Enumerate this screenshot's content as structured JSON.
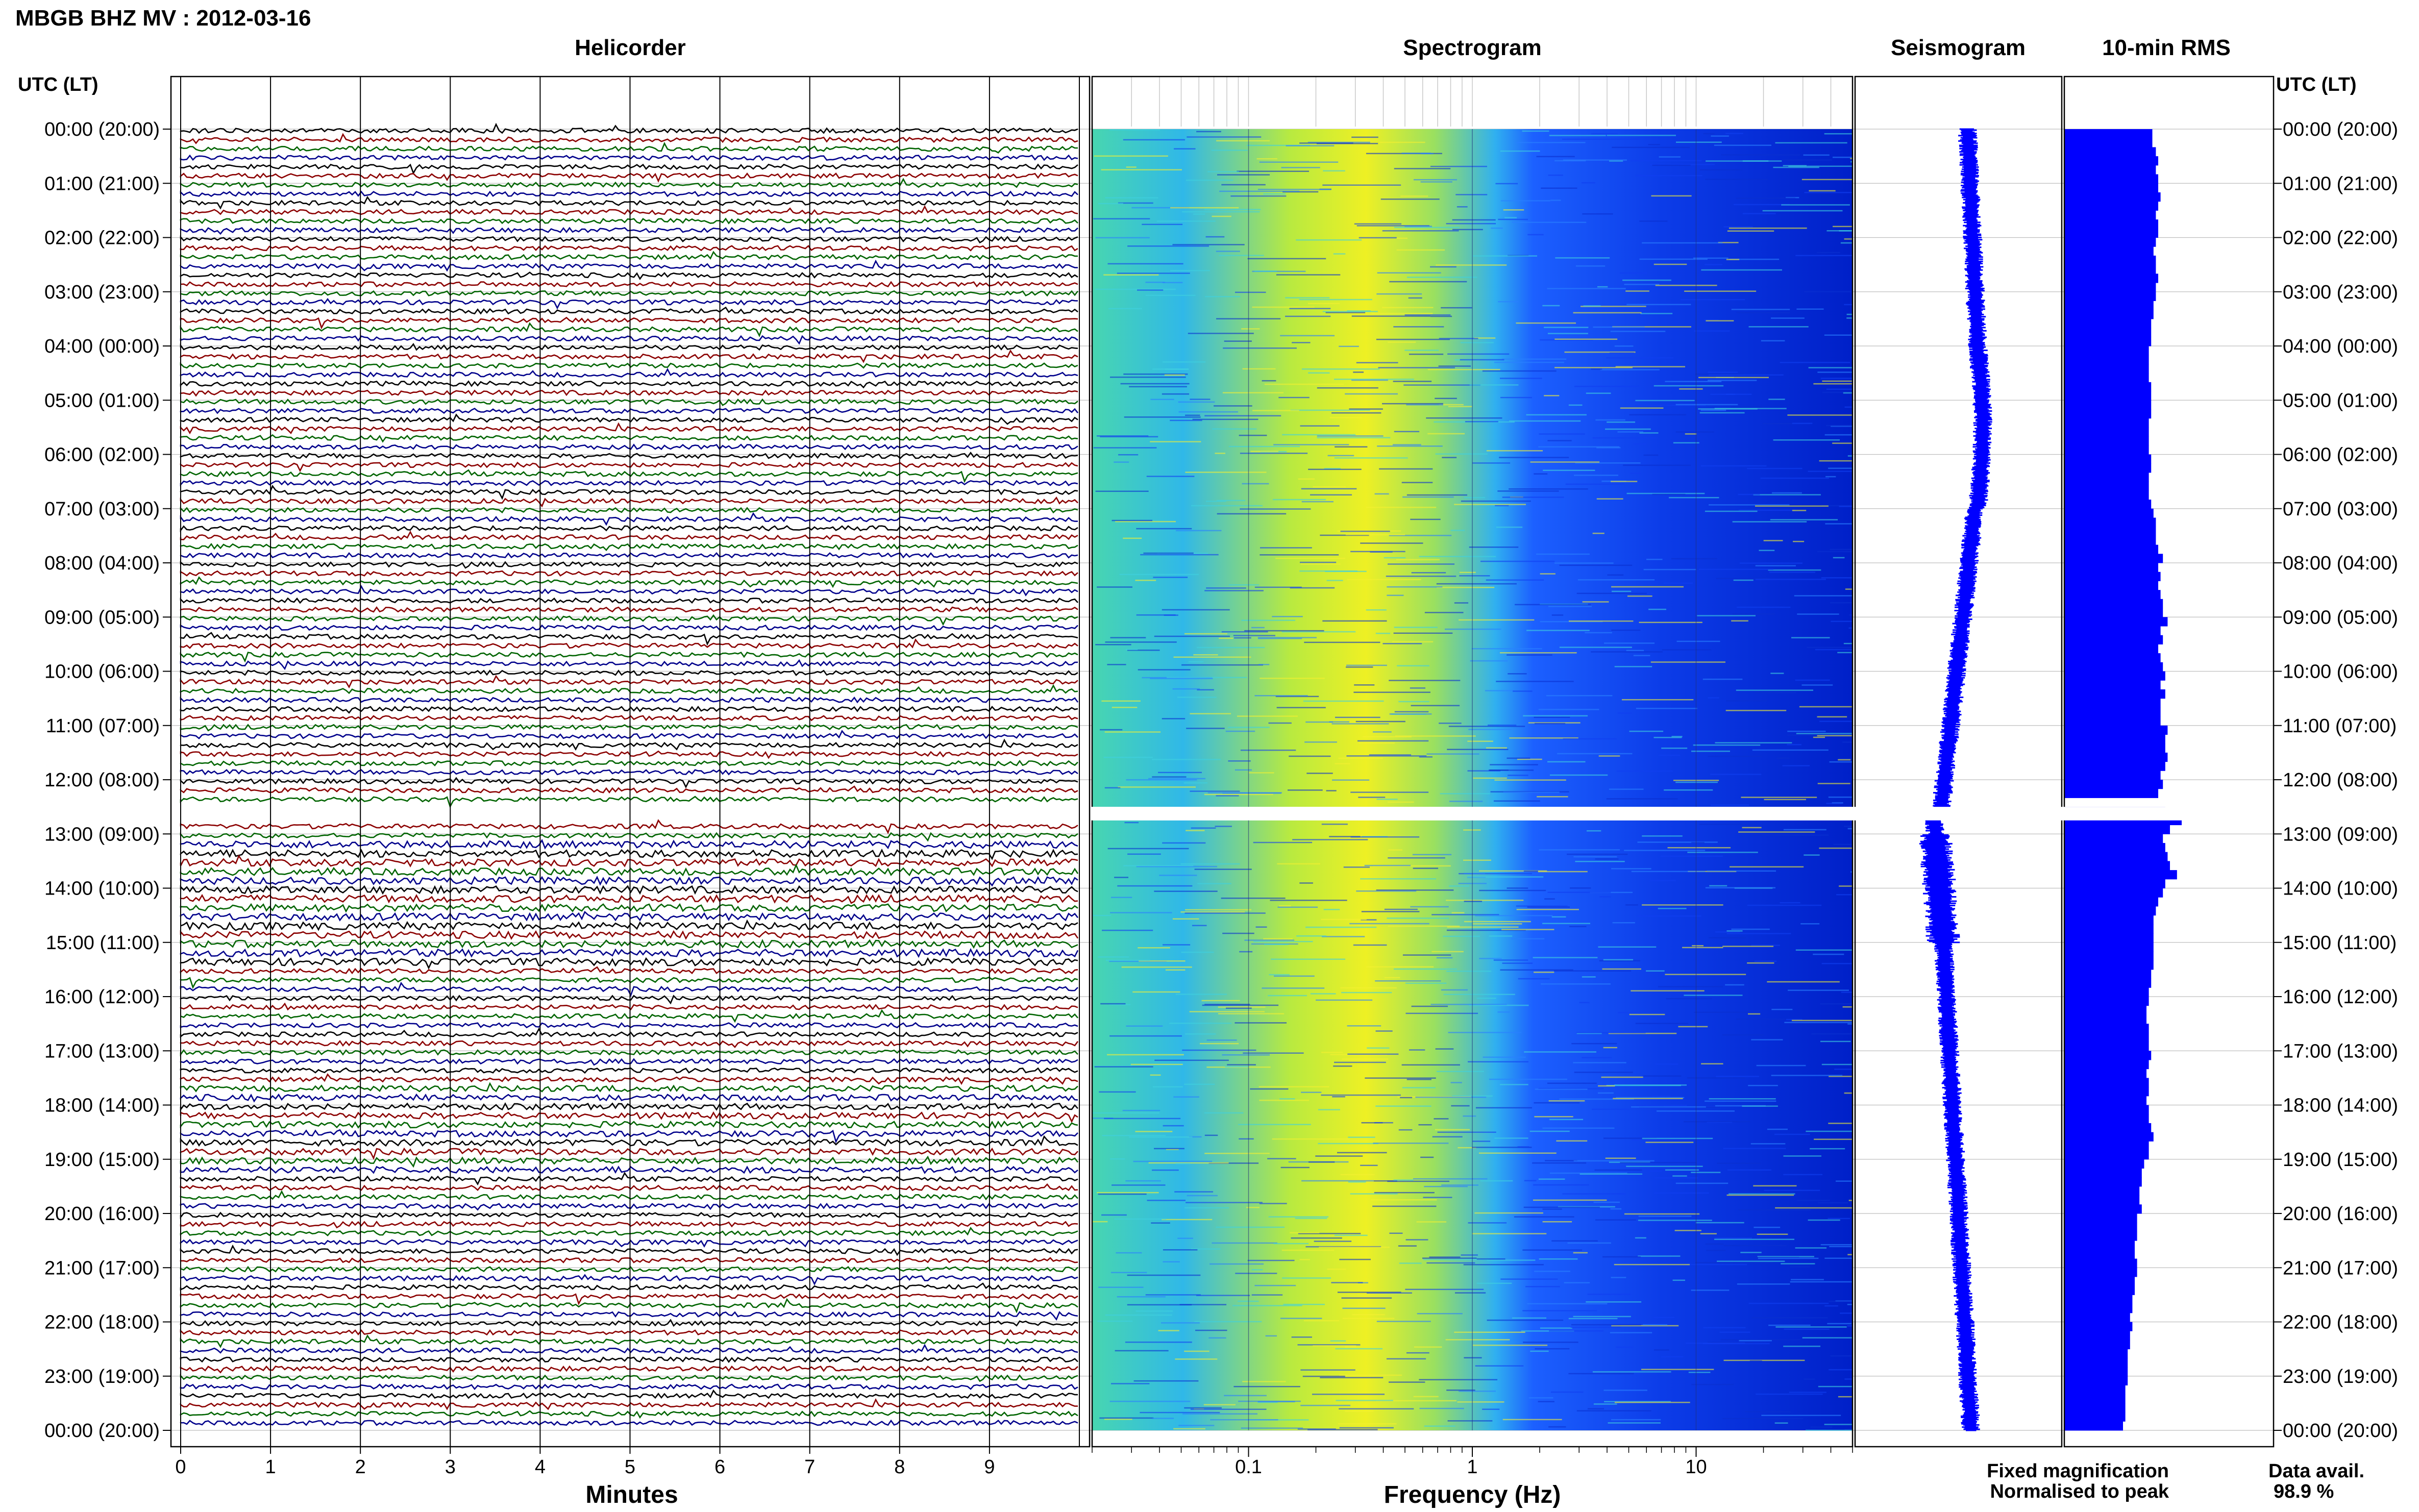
{
  "header": {
    "title": "MBGB BHZ MV : 2012-03-16",
    "utc_lt_label_left": "UTC (LT)",
    "utc_lt_label_right": "UTC (LT)"
  },
  "panels": {
    "helicorder": "Helicorder",
    "spectrogram": "Spectrogram",
    "seismogram": "Seismogram",
    "rms": "10-min RMS"
  },
  "axes": {
    "minutes_label": "Minutes",
    "frequency_label": "Frequency (Hz)"
  },
  "legend": {
    "fixed_magnification": "Fixed magnification",
    "normalised_to_peak": "Normalised to peak",
    "fixed_color": "#0000ff",
    "normalised_color": "#ff0000"
  },
  "data_availability": {
    "label": "Data avail.",
    "value": "98.9 %"
  },
  "colors": {
    "helicorder_traces": [
      "#000000",
      "#8b0000",
      "#006400",
      "#00008b"
    ],
    "spectrogram_low": "#0018ff",
    "spectrogram_mid": "#20c8e0",
    "spectrogram_high": "#f0f020",
    "seismogram": "#0000ff",
    "rms_bars": "#0000ff"
  },
  "chart_data": {
    "type": "heatmap",
    "time_ticks": [
      "00:00 (20:00)",
      "01:00 (21:00)",
      "02:00 (22:00)",
      "03:00 (23:00)",
      "04:00 (00:00)",
      "05:00 (01:00)",
      "06:00 (02:00)",
      "07:00 (03:00)",
      "08:00 (04:00)",
      "09:00 (05:00)",
      "10:00 (06:00)",
      "11:00 (07:00)",
      "12:00 (08:00)",
      "13:00 (09:00)",
      "14:00 (10:00)",
      "15:00 (11:00)",
      "16:00 (12:00)",
      "17:00 (13:00)",
      "18:00 (14:00)",
      "19:00 (15:00)",
      "20:00 (16:00)",
      "21:00 (17:00)",
      "22:00 (18:00)",
      "23:00 (19:00)",
      "00:00 (20:00)"
    ],
    "minutes_ticks": [
      "0",
      "1",
      "2",
      "3",
      "4",
      "5",
      "6",
      "7",
      "8",
      "9"
    ],
    "minutes_range": [
      0,
      10
    ],
    "frequency_ticks": [
      "0.1",
      "1",
      "10"
    ],
    "frequency_range_hz": [
      0.02,
      50
    ],
    "frequency_scale": "log",
    "data_gap_utc": [
      "12:30",
      "12:45"
    ],
    "rms_10min": [
      0.75,
      0.75,
      0.78,
      0.8,
      0.78,
      0.8,
      0.8,
      0.82,
      0.8,
      0.78,
      0.8,
      0.8,
      0.78,
      0.76,
      0.78,
      0.78,
      0.8,
      0.78,
      0.78,
      0.76,
      0.76,
      0.74,
      0.74,
      0.74,
      0.72,
      0.72,
      0.72,
      0.72,
      0.74,
      0.74,
      0.74,
      0.74,
      0.72,
      0.72,
      0.72,
      0.72,
      0.74,
      0.74,
      0.72,
      0.72,
      0.72,
      0.74,
      0.76,
      0.78,
      0.78,
      0.78,
      0.8,
      0.84,
      0.8,
      0.82,
      0.8,
      0.82,
      0.84,
      0.84,
      0.88,
      0.82,
      0.84,
      0.8,
      0.82,
      0.84,
      0.86,
      0.82,
      0.86,
      0.82,
      0.82,
      0.82,
      0.88,
      0.86,
      0.86,
      0.88,
      0.86,
      0.82,
      0.84,
      0.8,
      0.0,
      0.86,
      1.0,
      0.9,
      0.84,
      0.86,
      0.88,
      0.9,
      0.96,
      0.86,
      0.84,
      0.8,
      0.78,
      0.76,
      0.76,
      0.76,
      0.76,
      0.76,
      0.76,
      0.74,
      0.74,
      0.72,
      0.72,
      0.7,
      0.7,
      0.72,
      0.72,
      0.72,
      0.74,
      0.72,
      0.7,
      0.72,
      0.72,
      0.7,
      0.72,
      0.72,
      0.74,
      0.76,
      0.72,
      0.72,
      0.68,
      0.66,
      0.66,
      0.64,
      0.64,
      0.66,
      0.62,
      0.62,
      0.62,
      0.6,
      0.6,
      0.62,
      0.62,
      0.6,
      0.6,
      0.58,
      0.58,
      0.56,
      0.58,
      0.56,
      0.56,
      0.54,
      0.54,
      0.54,
      0.54,
      0.52,
      0.52,
      0.52,
      0.52,
      0.5
    ]
  }
}
